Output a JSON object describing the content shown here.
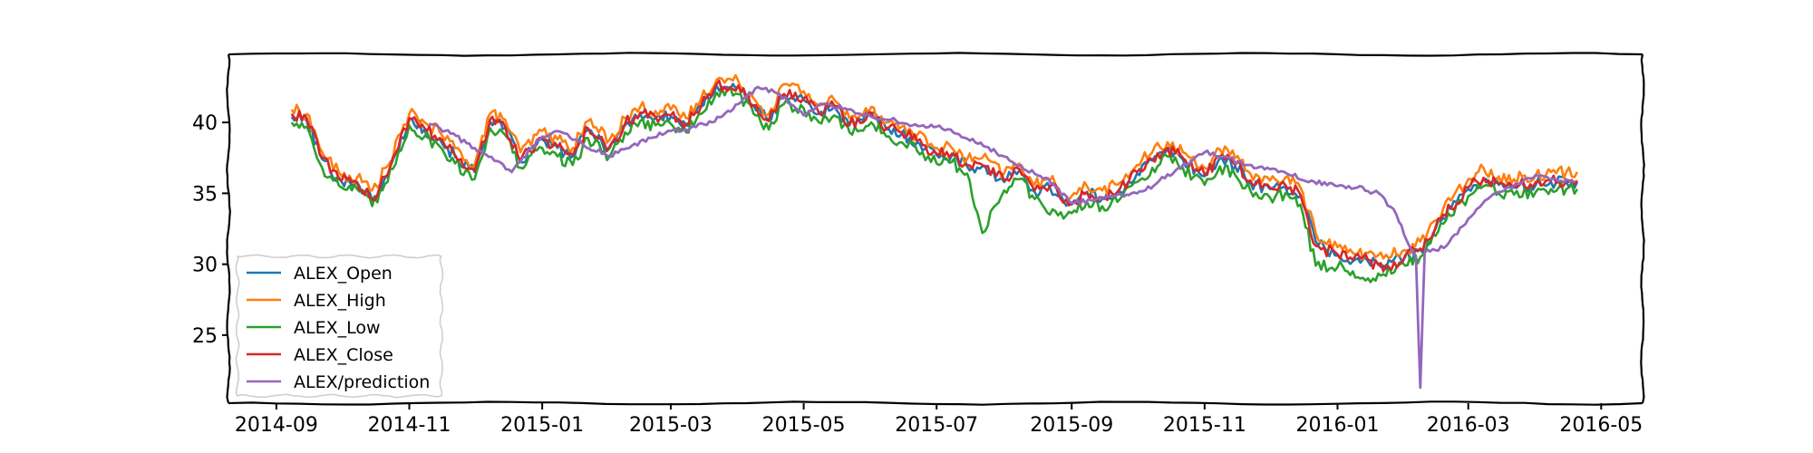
{
  "chart_data": {
    "type": "line",
    "title": "",
    "xlabel": "",
    "ylabel": "",
    "x_range": [
      "2014-08-10",
      "2016-05-20"
    ],
    "ylim": [
      20.2,
      44.8
    ],
    "grid": false,
    "legend_placement": "lower-left",
    "x_ticks": [
      "2014-09-01",
      "2014-11-01",
      "2015-01-01",
      "2015-03-01",
      "2015-05-01",
      "2015-07-01",
      "2015-09-01",
      "2015-11-01",
      "2016-01-01",
      "2016-03-01",
      "2016-05-01"
    ],
    "x_tick_labels": [
      "2014-09",
      "2014-11",
      "2015-01",
      "2015-03",
      "2015-05",
      "2015-07",
      "2015-09",
      "2015-11",
      "2016-01",
      "2016-03",
      "2016-05"
    ],
    "y_ticks": [
      25,
      30,
      35,
      40
    ],
    "y_tick_labels": [
      "25",
      "30",
      "35",
      "40"
    ],
    "base_dates": [
      "2014-09-08",
      "2014-09-15",
      "2014-09-22",
      "2014-10-01",
      "2014-10-08",
      "2014-10-15",
      "2014-10-22",
      "2014-11-01",
      "2014-11-08",
      "2014-11-15",
      "2014-11-22",
      "2014-12-01",
      "2014-12-08",
      "2014-12-15",
      "2014-12-22",
      "2015-01-01",
      "2015-01-08",
      "2015-01-15",
      "2015-01-22",
      "2015-02-01",
      "2015-02-08",
      "2015-02-15",
      "2015-02-22",
      "2015-03-01",
      "2015-03-08",
      "2015-03-15",
      "2015-03-22",
      "2015-04-01",
      "2015-04-08",
      "2015-04-15",
      "2015-04-22",
      "2015-05-01",
      "2015-05-08",
      "2015-05-15",
      "2015-05-22",
      "2015-06-01",
      "2015-06-08",
      "2015-06-15",
      "2015-06-22",
      "2015-07-01",
      "2015-07-08",
      "2015-07-15",
      "2015-07-22",
      "2015-08-01",
      "2015-08-08",
      "2015-08-15",
      "2015-08-22",
      "2015-09-01",
      "2015-09-08",
      "2015-09-15",
      "2015-09-22",
      "2015-10-01",
      "2015-10-08",
      "2015-10-15",
      "2015-10-22",
      "2015-11-01",
      "2015-11-08",
      "2015-11-15",
      "2015-11-22",
      "2015-12-01",
      "2015-12-08",
      "2015-12-15",
      "2015-12-22",
      "2016-01-01",
      "2016-01-08",
      "2016-01-15",
      "2016-01-22",
      "2016-02-01",
      "2016-02-08",
      "2016-02-15",
      "2016-02-22",
      "2016-03-01",
      "2016-03-08",
      "2016-03-15",
      "2016-03-22",
      "2016-04-01",
      "2016-04-08",
      "2016-04-15",
      "2016-04-20"
    ],
    "series": [
      {
        "name": "ALEX_Open",
        "color": "#1f77b4",
        "values": [
          40.4,
          40.1,
          37.4,
          35.8,
          35.8,
          34.5,
          36.2,
          40.2,
          39.5,
          38.8,
          37.6,
          36.5,
          40.1,
          39.6,
          37.2,
          38.8,
          38.2,
          37.6,
          39.5,
          38.2,
          39.8,
          40.6,
          40.3,
          40.4,
          39.8,
          41.1,
          42.6,
          42.5,
          41.2,
          40.1,
          41.9,
          41.6,
          40.6,
          41.1,
          39.8,
          40.6,
          39.5,
          39.2,
          38.6,
          37.7,
          37.7,
          36.9,
          36.9,
          35.8,
          36.6,
          35.1,
          35.4,
          34.2,
          35.0,
          34.6,
          35.0,
          36.4,
          37.3,
          38.1,
          37.4,
          36.2,
          37.5,
          36.9,
          35.8,
          35.3,
          35.5,
          34.8,
          31.6,
          30.6,
          30.2,
          30.2,
          29.9,
          30.5,
          31.0,
          32.5,
          33.9,
          35.3,
          36.0,
          35.6,
          35.4,
          35.6,
          35.8,
          35.8,
          35.8
        ]
      },
      {
        "name": "ALEX_High",
        "color": "#ff7f0e",
        "values": [
          40.9,
          40.6,
          37.9,
          36.2,
          36.1,
          35.2,
          36.9,
          40.6,
          40.0,
          39.3,
          38.2,
          37.0,
          40.6,
          40.2,
          37.9,
          39.4,
          38.8,
          38.2,
          40.1,
          38.8,
          40.3,
          41.1,
          40.8,
          40.9,
          40.3,
          41.7,
          43.0,
          42.9,
          41.7,
          40.6,
          42.7,
          42.2,
          41.2,
          41.6,
          40.3,
          41.1,
          40.0,
          39.7,
          39.1,
          38.2,
          38.2,
          37.4,
          37.5,
          36.4,
          37.1,
          35.6,
          35.9,
          34.8,
          35.5,
          35.2,
          35.6,
          37.0,
          37.9,
          38.6,
          37.9,
          36.8,
          38.1,
          37.5,
          36.4,
          35.9,
          36.1,
          35.4,
          32.2,
          31.2,
          30.8,
          30.8,
          30.4,
          31.0,
          31.6,
          33.1,
          34.5,
          36.0,
          36.8,
          36.2,
          36.0,
          36.3,
          36.5,
          36.5,
          36.5
        ]
      },
      {
        "name": "ALEX_Low",
        "color": "#2ca02c",
        "values": [
          40.0,
          39.7,
          36.8,
          35.4,
          35.3,
          34.1,
          35.8,
          39.8,
          39.0,
          38.3,
          37.1,
          36.0,
          39.6,
          39.1,
          36.8,
          38.2,
          37.6,
          37.0,
          38.9,
          37.6,
          39.3,
          40.1,
          39.8,
          39.9,
          39.3,
          40.6,
          42.1,
          42.0,
          40.6,
          39.5,
          41.3,
          41.0,
          40.0,
          40.5,
          39.3,
          40.0,
          39.0,
          38.6,
          38.0,
          37.1,
          37.2,
          36.4,
          32.2,
          35.2,
          36.0,
          34.6,
          33.5,
          33.6,
          34.4,
          34.1,
          34.4,
          35.8,
          36.8,
          37.6,
          36.8,
          35.6,
          36.9,
          36.3,
          35.2,
          34.7,
          35.0,
          34.2,
          29.9,
          29.8,
          29.5,
          29.0,
          29.3,
          29.9,
          30.5,
          32.0,
          33.4,
          34.8,
          35.5,
          35.0,
          34.9,
          35.1,
          35.3,
          35.3,
          35.3
        ]
      },
      {
        "name": "ALEX_Close",
        "color": "#d62728",
        "values": [
          40.6,
          40.3,
          37.5,
          35.9,
          35.8,
          34.6,
          36.3,
          40.3,
          39.6,
          38.9,
          37.7,
          36.6,
          40.2,
          39.7,
          37.3,
          38.9,
          38.3,
          37.7,
          39.6,
          38.3,
          39.9,
          40.7,
          40.4,
          40.5,
          39.9,
          41.2,
          42.7,
          42.6,
          41.2,
          40.1,
          42.0,
          41.7,
          40.7,
          41.2,
          39.9,
          40.7,
          39.6,
          39.3,
          38.7,
          37.8,
          37.8,
          37.0,
          37.0,
          35.9,
          36.7,
          35.2,
          35.5,
          34.3,
          35.1,
          34.7,
          35.1,
          36.5,
          37.4,
          38.2,
          37.5,
          36.3,
          37.6,
          37.0,
          35.9,
          35.4,
          35.6,
          34.9,
          31.3,
          30.7,
          30.3,
          30.3,
          29.5,
          30.6,
          31.1,
          32.6,
          34.0,
          35.4,
          36.1,
          35.7,
          35.5,
          35.8,
          35.9,
          35.9,
          35.9
        ]
      }
    ],
    "prediction": {
      "name": "ALEX/prediction",
      "color": "#9467bd",
      "dates": [
        "2014-11-10",
        "2014-11-20",
        "2014-12-01",
        "2014-12-10",
        "2014-12-18",
        "2015-01-01",
        "2015-01-10",
        "2015-01-20",
        "2015-02-01",
        "2015-02-10",
        "2015-02-20",
        "2015-03-01",
        "2015-03-10",
        "2015-03-20",
        "2015-04-01",
        "2015-04-10",
        "2015-04-20",
        "2015-05-01",
        "2015-05-10",
        "2015-05-20",
        "2015-06-01",
        "2015-06-10",
        "2015-06-20",
        "2015-07-01",
        "2015-07-10",
        "2015-07-20",
        "2015-08-01",
        "2015-08-10",
        "2015-08-20",
        "2015-09-01",
        "2015-09-10",
        "2015-09-20",
        "2015-10-01",
        "2015-10-10",
        "2015-10-20",
        "2015-11-01",
        "2015-11-10",
        "2015-11-20",
        "2015-12-01",
        "2015-12-10",
        "2015-12-20",
        "2016-01-01",
        "2016-01-10",
        "2016-01-20",
        "2016-01-28",
        "2016-02-04",
        "2016-02-06",
        "2016-02-08",
        "2016-02-10",
        "2016-02-20",
        "2016-03-01",
        "2016-03-10",
        "2016-03-20",
        "2016-04-01",
        "2016-04-10",
        "2016-04-19"
      ],
      "values": [
        39.9,
        39.2,
        38.2,
        37.3,
        36.5,
        39.0,
        39.3,
        38.4,
        37.6,
        38.2,
        38.9,
        39.4,
        39.6,
        40.0,
        41.3,
        42.5,
        42.0,
        40.5,
        41.3,
        41.0,
        40.4,
        40.2,
        39.8,
        39.7,
        39.2,
        38.5,
        37.6,
        36.7,
        36.1,
        34.3,
        34.5,
        34.8,
        35.0,
        35.7,
        36.8,
        37.9,
        37.6,
        37.0,
        36.7,
        36.3,
        35.9,
        35.5,
        35.4,
        35.0,
        33.5,
        31.0,
        30.5,
        21.3,
        30.8,
        31.3,
        33.2,
        34.6,
        35.4,
        36.3,
        36.0,
        35.8
      ]
    },
    "legend": [
      "ALEX_Open",
      "ALEX_High",
      "ALEX_Low",
      "ALEX_Close",
      "ALEX/prediction"
    ]
  }
}
